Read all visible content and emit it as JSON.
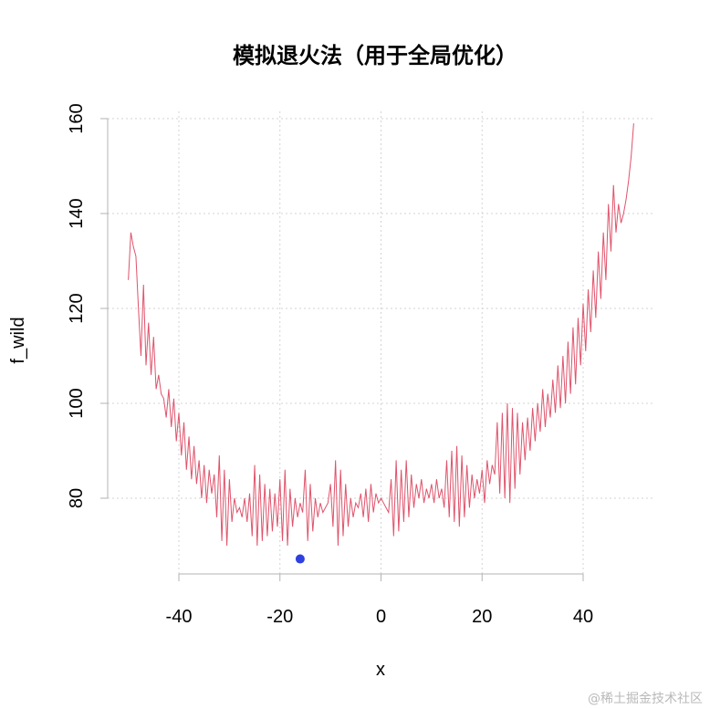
{
  "chart_data": {
    "type": "line",
    "title": "模拟退火法（用于全局优化）",
    "xlabel": "x",
    "ylabel": "f_wild",
    "xlim": [
      -54,
      54
    ],
    "ylim": [
      61,
      163
    ],
    "x_ticks": [
      -40,
      -20,
      0,
      20,
      40
    ],
    "y_ticks": [
      80,
      100,
      120,
      140,
      160
    ],
    "grid": true,
    "line_color": "#DF536B",
    "point_color": "#2E40DF",
    "series": [
      {
        "x": [
          -50,
          -49.5,
          -49,
          -48.5,
          -48,
          -47.5,
          -47,
          -46.5,
          -46,
          -45.5,
          -45,
          -44.5,
          -44,
          -43.5,
          -43,
          -42.5,
          -42,
          -41.5,
          -41,
          -40.5,
          -40,
          -39.5,
          -39,
          -38.5,
          -38,
          -37.5,
          -37,
          -36.5,
          -36,
          -35.5,
          -35,
          -34.5,
          -34,
          -33.5,
          -33,
          -32.5,
          -32,
          -31.5,
          -31,
          -30.5,
          -30,
          -29.5,
          -29,
          -28.5,
          -28,
          -27.5,
          -27,
          -26.5,
          -26,
          -25.5,
          -25,
          -24.5,
          -24,
          -23.5,
          -23,
          -22.5,
          -22,
          -21.5,
          -21,
          -20.5,
          -20,
          -19.5,
          -19,
          -18.5,
          -18,
          -17.5,
          -17,
          -16.5,
          -16,
          -15.5,
          -15,
          -14.5,
          -14,
          -13.5,
          -13,
          -12.5,
          -12,
          -11.5,
          -11,
          -10.5,
          -10,
          -9.5,
          -9,
          -8.5,
          -8,
          -7.5,
          -7,
          -6.5,
          -6,
          -5.5,
          -5,
          -4.5,
          -4,
          -3.5,
          -3,
          -2.5,
          -2,
          -1.5,
          -1,
          -0.5,
          0,
          0.5,
          1,
          1.5,
          2,
          2.5,
          3,
          3.5,
          4,
          4.5,
          5,
          5.5,
          6,
          6.5,
          7,
          7.5,
          8,
          8.5,
          9,
          9.5,
          10,
          10.5,
          11,
          11.5,
          12,
          12.5,
          13,
          13.5,
          14,
          14.5,
          15,
          15.5,
          16,
          16.5,
          17,
          17.5,
          18,
          18.5,
          19,
          19.5,
          20,
          20.5,
          21,
          21.5,
          22,
          22.5,
          23,
          23.5,
          24,
          24.5,
          25,
          25.5,
          26,
          26.5,
          27,
          27.5,
          28,
          28.5,
          29,
          29.5,
          30,
          30.5,
          31,
          31.5,
          32,
          32.5,
          33,
          33.5,
          34,
          34.5,
          35,
          35.5,
          36,
          36.5,
          37,
          37.5,
          38,
          38.5,
          39,
          39.5,
          40,
          40.5,
          41,
          41.5,
          42,
          42.5,
          43,
          43.5,
          44,
          44.5,
          45,
          45.5,
          46,
          46.5,
          47,
          47.5,
          48,
          48.5,
          49,
          49.5,
          50
        ],
        "y": [
          126,
          136,
          133,
          131,
          120,
          110,
          125,
          108,
          117,
          106,
          114,
          103,
          106,
          102,
          101,
          97,
          103,
          95,
          101,
          92,
          98,
          89,
          96,
          86,
          93,
          84,
          91,
          83,
          88,
          80,
          87,
          79,
          86,
          81,
          85,
          76,
          89,
          71,
          86,
          70,
          84,
          75,
          80,
          77,
          78,
          76,
          80,
          75,
          81,
          72,
          87,
          70,
          85,
          71,
          83,
          72,
          82,
          73,
          81,
          74,
          84,
          71,
          86,
          70,
          82,
          74,
          80,
          76,
          79,
          77,
          86,
          71,
          83,
          73,
          80,
          76,
          79,
          77,
          78,
          79,
          83,
          74,
          88,
          70,
          86,
          72,
          83,
          74,
          80,
          76,
          79,
          78,
          81,
          76,
          82,
          75,
          83,
          77,
          81,
          79,
          80,
          79,
          78,
          77,
          84,
          72,
          88,
          73,
          86,
          75,
          88,
          76,
          85,
          78,
          83,
          80,
          84,
          79,
          82,
          80,
          83,
          79,
          84,
          80,
          82,
          78,
          88,
          76,
          90,
          75,
          91,
          74,
          89,
          76,
          87,
          78,
          85,
          80,
          84,
          81,
          86,
          79,
          88,
          83,
          87,
          85,
          96,
          81,
          98,
          80,
          100,
          79,
          99,
          82,
          98,
          85,
          96,
          88,
          97,
          90,
          99,
          92,
          100,
          94,
          103,
          95,
          102,
          97,
          105,
          98,
          108,
          99,
          110,
          100,
          113,
          102,
          116,
          104,
          118,
          108,
          121,
          111,
          124,
          115,
          128,
          118,
          132,
          122,
          136,
          126,
          142,
          132,
          146,
          136,
          142,
          138,
          140,
          143,
          147,
          152,
          159
        ]
      }
    ],
    "points": [
      {
        "x": -16,
        "y": 67.2
      }
    ]
  },
  "watermark": "@稀土掘金技术社区"
}
